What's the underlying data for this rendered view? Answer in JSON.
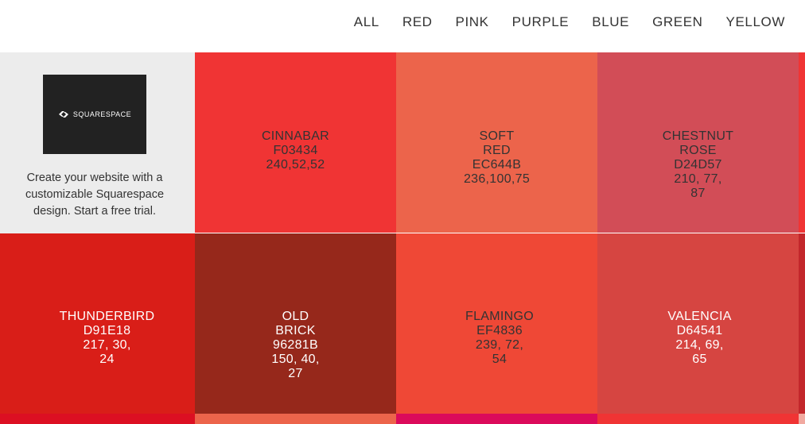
{
  "nav": {
    "items": [
      "ALL",
      "RED",
      "PINK",
      "PURPLE",
      "BLUE",
      "GREEN",
      "YELLOW"
    ]
  },
  "ad": {
    "logo_text": "SQUARESPACE",
    "text": "Create your website with a customizable Squarespace design. Start a free trial."
  },
  "tiles": [
    {
      "lines": [
        "CINNABAR",
        "F03434",
        "240,52,52"
      ],
      "color": "#F03434",
      "text_color": "#333333"
    },
    {
      "lines": [
        "SOFT",
        "RED",
        "EC644B",
        "236,100,75"
      ],
      "color": "#EC644B",
      "text_color": "#333333"
    },
    {
      "lines": [
        "CHESTNUT",
        "ROSE",
        "D24D57",
        "210, 77,",
        "87"
      ],
      "color": "#D24D57",
      "text_color": "#333333"
    },
    {
      "lines": [
        "THUNDERBIRD",
        "D91E18",
        "217, 30,",
        "24"
      ],
      "color": "#D91E18",
      "text_color": "#ffffff"
    },
    {
      "lines": [
        "OLD",
        "BRICK",
        "96281B",
        "150, 40,",
        "27"
      ],
      "color": "#96281B",
      "text_color": "#ffffff"
    },
    {
      "lines": [
        "FLAMINGO",
        "EF4836",
        "239, 72,",
        "54"
      ],
      "color": "#EF4836",
      "text_color": "#333333"
    },
    {
      "lines": [
        "VALENCIA",
        "D64541",
        "214, 69,",
        "65"
      ],
      "color": "#D64541",
      "text_color": "#ffffff"
    }
  ],
  "edge_colors": [
    "#F03434",
    "#C3272B"
  ],
  "bottom_row_colors": [
    "#DC0F22",
    "#EC644B",
    "#DB0A5B",
    "#F03434",
    "#F1A9A0"
  ]
}
